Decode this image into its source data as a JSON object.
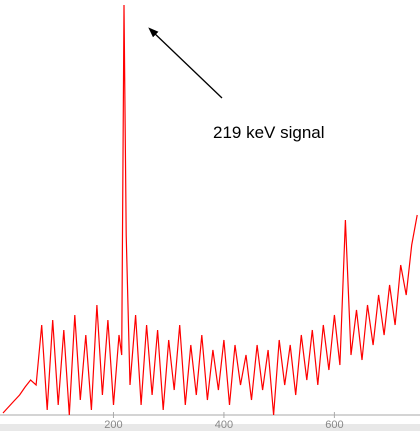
{
  "chart_data": {
    "type": "line",
    "annotation": "219 keV signal",
    "x": [
      0,
      10,
      20,
      30,
      40,
      50,
      60,
      70,
      80,
      90,
      100,
      110,
      120,
      130,
      140,
      150,
      160,
      170,
      180,
      190,
      200,
      210,
      215,
      219,
      223,
      230,
      240,
      250,
      260,
      270,
      280,
      290,
      300,
      310,
      320,
      330,
      340,
      350,
      360,
      370,
      380,
      390,
      400,
      410,
      420,
      430,
      440,
      450,
      460,
      470,
      480,
      490,
      500,
      510,
      520,
      530,
      540,
      550,
      560,
      570,
      580,
      590,
      600,
      610,
      620,
      630,
      640,
      650,
      660,
      670,
      680,
      690,
      700,
      710,
      720,
      730,
      740,
      750
    ],
    "series": [
      {
        "color": "#ff0000",
        "values": [
          2,
          8,
          14,
          20,
          28,
          35,
          30,
          90,
          5,
          95,
          10,
          85,
          0,
          100,
          15,
          80,
          5,
          110,
          20,
          95,
          10,
          80,
          60,
          410,
          180,
          30,
          100,
          10,
          90,
          20,
          85,
          5,
          75,
          25,
          90,
          10,
          70,
          20,
          80,
          15,
          65,
          25,
          75,
          10,
          70,
          30,
          60,
          15,
          70,
          25,
          65,
          0,
          75,
          30,
          70,
          20,
          80,
          35,
          85,
          30,
          90,
          45,
          100,
          50,
          195,
          60,
          105,
          55,
          110,
          70,
          120,
          80,
          130,
          90,
          150,
          120,
          170,
          200
        ]
      }
    ],
    "xlim": [
      0,
      755
    ],
    "ylim": [
      0,
      415
    ],
    "xticks": [
      200,
      400,
      600
    ]
  }
}
